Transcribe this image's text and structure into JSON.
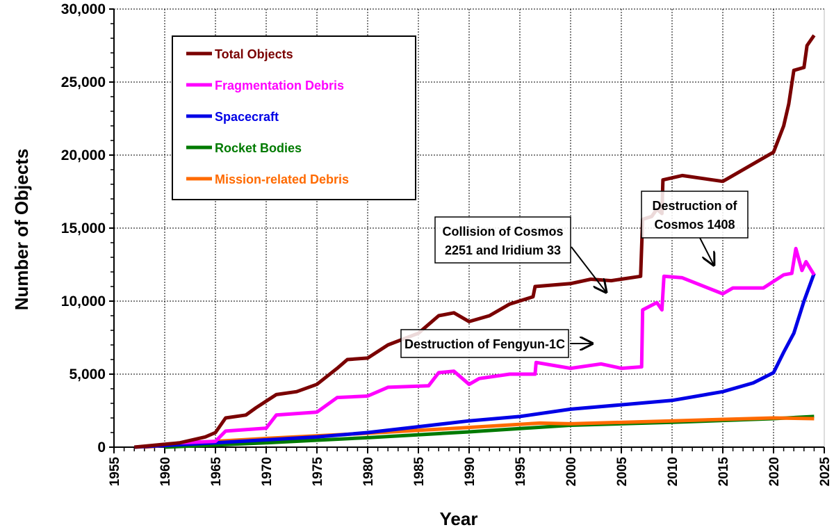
{
  "chart_data": {
    "type": "line",
    "title": "",
    "xlabel": "Year",
    "ylabel": "Number of Objects",
    "xlim": [
      1955,
      2025
    ],
    "ylim": [
      0,
      30000
    ],
    "grid": true,
    "legend_placement": "top-left",
    "x_ticks": [
      "1955",
      "1960",
      "1965",
      "1970",
      "1975",
      "1980",
      "1985",
      "1990",
      "1995",
      "2000",
      "2005",
      "2010",
      "2015",
      "2020",
      "2025"
    ],
    "y_ticks": [
      "0",
      "5,000",
      "10,000",
      "15,000",
      "20,000",
      "25,000",
      "30,000"
    ],
    "series": [
      {
        "name": "Total Objects",
        "color": "#7a0000",
        "points": [
          [
            1957,
            0
          ],
          [
            1961.5,
            300
          ],
          [
            1964,
            700
          ],
          [
            1965,
            1000
          ],
          [
            1966,
            2000
          ],
          [
            1968,
            2200
          ],
          [
            1969,
            2700
          ],
          [
            1971,
            3600
          ],
          [
            1973,
            3800
          ],
          [
            1975,
            4300
          ],
          [
            1977,
            5400
          ],
          [
            1978,
            6000
          ],
          [
            1980,
            6100
          ],
          [
            1982,
            7000
          ],
          [
            1985,
            7800
          ],
          [
            1987,
            9000
          ],
          [
            1988.5,
            9200
          ],
          [
            1990,
            8600
          ],
          [
            1992,
            9000
          ],
          [
            1994,
            9800
          ],
          [
            1996.3,
            10300
          ],
          [
            1996.5,
            11000
          ],
          [
            2000,
            11200
          ],
          [
            2002,
            11500
          ],
          [
            2004,
            11400
          ],
          [
            2006.9,
            11700
          ],
          [
            2007.1,
            15600
          ],
          [
            2008,
            15800
          ],
          [
            2008.5,
            16300
          ],
          [
            2009,
            16000
          ],
          [
            2009.1,
            18300
          ],
          [
            2011,
            18600
          ],
          [
            2015,
            18200
          ],
          [
            2016,
            18600
          ],
          [
            2019,
            19800
          ],
          [
            2020,
            20200
          ],
          [
            2021,
            22000
          ],
          [
            2021.5,
            23500
          ],
          [
            2022,
            25800
          ],
          [
            2023,
            26000
          ],
          [
            2023.3,
            27500
          ],
          [
            2024,
            28200
          ]
        ]
      },
      {
        "name": "Fragmentation Debris",
        "color": "#ff00ff",
        "points": [
          [
            1961.5,
            300
          ],
          [
            1965,
            400
          ],
          [
            1966,
            1100
          ],
          [
            1970,
            1300
          ],
          [
            1971,
            2200
          ],
          [
            1975,
            2400
          ],
          [
            1977,
            3400
          ],
          [
            1980,
            3500
          ],
          [
            1982,
            4100
          ],
          [
            1986,
            4200
          ],
          [
            1987,
            5100
          ],
          [
            1988.5,
            5200
          ],
          [
            1990,
            4300
          ],
          [
            1991,
            4700
          ],
          [
            1994,
            5000
          ],
          [
            1996.5,
            5000
          ],
          [
            1996.6,
            5800
          ],
          [
            2000,
            5400
          ],
          [
            2003,
            5700
          ],
          [
            2005,
            5400
          ],
          [
            2007,
            5500
          ],
          [
            2007.1,
            9400
          ],
          [
            2008.5,
            9900
          ],
          [
            2009,
            9400
          ],
          [
            2009.2,
            11700
          ],
          [
            2011,
            11600
          ],
          [
            2015,
            10500
          ],
          [
            2016,
            10900
          ],
          [
            2019,
            10900
          ],
          [
            2021,
            11800
          ],
          [
            2021.8,
            11900
          ],
          [
            2022.2,
            13600
          ],
          [
            2022.8,
            12100
          ],
          [
            2023.2,
            12700
          ],
          [
            2024,
            11800
          ]
        ]
      },
      {
        "name": "Spacecraft",
        "color": "#0000e6",
        "points": [
          [
            1957,
            0
          ],
          [
            1965,
            300
          ],
          [
            1970,
            500
          ],
          [
            1975,
            700
          ],
          [
            1980,
            1000
          ],
          [
            1985,
            1400
          ],
          [
            1990,
            1800
          ],
          [
            1995,
            2100
          ],
          [
            2000,
            2600
          ],
          [
            2005,
            2900
          ],
          [
            2010,
            3200
          ],
          [
            2015,
            3800
          ],
          [
            2018,
            4400
          ],
          [
            2020,
            5100
          ],
          [
            2021,
            6500
          ],
          [
            2022,
            7800
          ],
          [
            2023,
            10000
          ],
          [
            2024,
            11900
          ]
        ]
      },
      {
        "name": "Rocket Bodies",
        "color": "#007a00",
        "points": [
          [
            1960,
            0
          ],
          [
            1965,
            150
          ],
          [
            1970,
            300
          ],
          [
            1980,
            650
          ],
          [
            1990,
            1050
          ],
          [
            2000,
            1500
          ],
          [
            2010,
            1700
          ],
          [
            2020,
            1950
          ],
          [
            2024,
            2100
          ]
        ]
      },
      {
        "name": "Mission-related Debris",
        "color": "#ff6a00",
        "points": [
          [
            1958,
            0
          ],
          [
            1965,
            400
          ],
          [
            1970,
            600
          ],
          [
            1980,
            950
          ],
          [
            1990,
            1350
          ],
          [
            1997,
            1650
          ],
          [
            2000,
            1600
          ],
          [
            2010,
            1800
          ],
          [
            2020,
            2000
          ],
          [
            2024,
            1950
          ]
        ]
      }
    ],
    "annotations": [
      {
        "lines": [
          "Destruction of Fengyun-1C"
        ],
        "target": [
          2007,
          7000
        ]
      },
      {
        "lines": [
          "Collision of Cosmos",
          "2251 and Iridium 33"
        ],
        "target": [
          2009,
          10000
        ]
      },
      {
        "lines": [
          "Destruction of",
          "Cosmos 1408"
        ],
        "target": [
          2021.8,
          12500
        ]
      }
    ]
  }
}
